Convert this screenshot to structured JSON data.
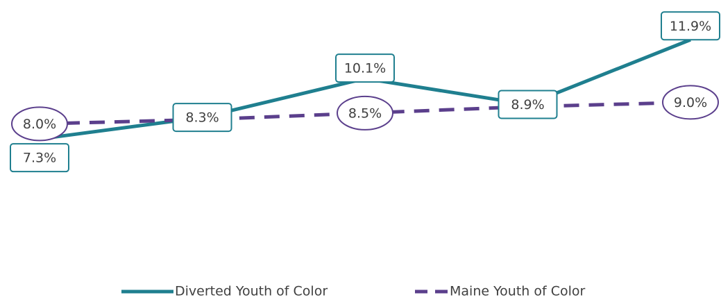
{
  "chart_data": {
    "type": "line",
    "categories": [
      null,
      null,
      null,
      null,
      null
    ],
    "ylim": [
      0,
      14
    ],
    "legend": "bottom",
    "series": [
      {
        "name": "Diverted Youth of Color",
        "color": "#1f7f8f",
        "dash": false,
        "values": [
          7.3,
          8.3,
          10.1,
          8.9,
          11.9
        ],
        "value_labels": [
          "7.3%",
          "8.3%",
          "10.1%",
          "8.9%",
          "11.9%"
        ]
      },
      {
        "name": "Maine Youth of Color",
        "color": "#5b3f8c",
        "dash": true,
        "values": [
          8.0,
          8.2,
          8.5,
          8.8,
          9.0
        ],
        "value_labels": [
          "8.0%",
          null,
          "8.5%",
          null,
          "9.0%"
        ]
      }
    ]
  }
}
